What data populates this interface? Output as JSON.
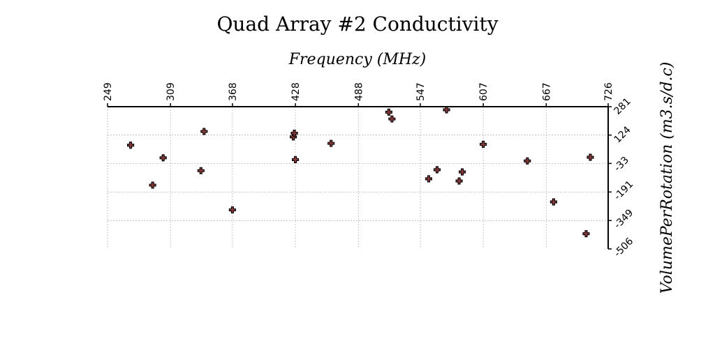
{
  "chart_data": {
    "type": "scatter",
    "title": "Quad Array #2 Conductivity",
    "xlabel": "Frequency (MHz)",
    "ylabel": "VolumePerRotation (m3.s/d.c)",
    "x_axis_position": "top",
    "y_axis_position": "right",
    "xlim": [
      249,
      726
    ],
    "ylim": [
      -506,
      281
    ],
    "x_ticks": [
      "249",
      "309",
      "368",
      "428",
      "488",
      "547",
      "607",
      "667",
      "726"
    ],
    "x_tick_values": [
      249,
      309,
      368,
      428,
      488,
      547,
      607,
      667,
      726
    ],
    "y_ticks": [
      "281",
      "124",
      "-33",
      "-191",
      "-349",
      "-506"
    ],
    "y_tick_values": [
      281,
      124,
      -33,
      -191,
      -349,
      -506
    ],
    "grid": true,
    "marker": "plus",
    "marker_color": "#8b3a3a",
    "marker_edge_color": "#000000",
    "points": [
      {
        "x": 271,
        "y": 68
      },
      {
        "x": 292,
        "y": -153
      },
      {
        "x": 302,
        "y": -2
      },
      {
        "x": 338,
        "y": -73
      },
      {
        "x": 341,
        "y": 144
      },
      {
        "x": 368,
        "y": -290
      },
      {
        "x": 426,
        "y": 114
      },
      {
        "x": 427,
        "y": 134
      },
      {
        "x": 428,
        "y": -12
      },
      {
        "x": 462,
        "y": 78
      },
      {
        "x": 517,
        "y": 251
      },
      {
        "x": 520,
        "y": 213
      },
      {
        "x": 555,
        "y": -118
      },
      {
        "x": 563,
        "y": -68
      },
      {
        "x": 572,
        "y": 264
      },
      {
        "x": 584,
        "y": -130
      },
      {
        "x": 587,
        "y": -80
      },
      {
        "x": 607,
        "y": 73
      },
      {
        "x": 649,
        "y": -19
      },
      {
        "x": 674,
        "y": -246
      },
      {
        "x": 705,
        "y": -422
      },
      {
        "x": 709,
        "y": 1
      }
    ]
  }
}
